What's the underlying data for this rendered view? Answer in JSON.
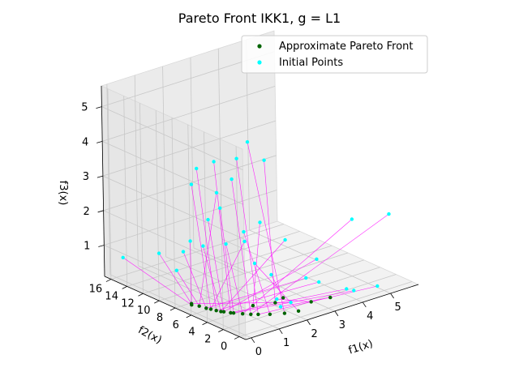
{
  "chart_data": {
    "type": "scatter3d",
    "title": "Pareto Front IKK1, g = L1",
    "xlabel": "f1(x)",
    "ylabel": "f2(x)",
    "zlabel": "f3(x)",
    "xlim": [
      -0.2,
      6.0
    ],
    "ylim": [
      -0.8,
      16.8
    ],
    "zlim": [
      0.1,
      5.6
    ],
    "xticks": [
      "0",
      "1",
      "2",
      "3",
      "4",
      "5"
    ],
    "yticks": [
      "0",
      "2",
      "4",
      "6",
      "8",
      "10",
      "12",
      "14",
      "16"
    ],
    "zticks": [
      "1",
      "2",
      "3",
      "4",
      "5"
    ],
    "grid": true,
    "legend_position": "upper-right",
    "series": [
      {
        "name": "Approximate Pareto Front",
        "color": "#006400",
        "points": [
          [
            0.05,
            6.8,
            0.25
          ],
          [
            0.1,
            7.0,
            0.25
          ],
          [
            0.15,
            6.2,
            0.25
          ],
          [
            0.2,
            5.5,
            0.25
          ],
          [
            0.25,
            5.1,
            0.25
          ],
          [
            0.3,
            4.6,
            0.25
          ],
          [
            0.35,
            4.2,
            0.25
          ],
          [
            0.4,
            4.0,
            0.25
          ],
          [
            0.5,
            3.5,
            0.25
          ],
          [
            0.55,
            3.3,
            0.25
          ],
          [
            0.7,
            2.7,
            0.25
          ],
          [
            0.85,
            2.2,
            0.25
          ],
          [
            1.0,
            1.8,
            0.25
          ],
          [
            1.25,
            1.2,
            0.25
          ],
          [
            1.6,
            0.6,
            0.25
          ],
          [
            2.0,
            0.25,
            0.25
          ],
          [
            1.3,
            3.5,
            0.25
          ],
          [
            1.9,
            2.8,
            0.25
          ],
          [
            2.3,
            3.2,
            0.25
          ],
          [
            2.7,
            1.1,
            0.25
          ],
          [
            3.3,
            0.8,
            0.25
          ]
        ]
      },
      {
        "name": "Initial Points",
        "color": "#00ffff",
        "points": [
          [
            0.1,
            15.5,
            0.7
          ],
          [
            0.25,
            11.5,
            1.2
          ],
          [
            0.3,
            9.5,
            0.9
          ],
          [
            0.35,
            8.8,
            1.5
          ],
          [
            0.45,
            8.0,
            3.5
          ],
          [
            0.5,
            7.5,
            4.0
          ],
          [
            0.55,
            7.0,
            1.8
          ],
          [
            0.6,
            6.5,
            2.6
          ],
          [
            0.7,
            6.0,
            4.3
          ],
          [
            0.75,
            5.5,
            3.0
          ],
          [
            0.8,
            5.0,
            2.0
          ],
          [
            0.9,
            4.5,
            3.9
          ],
          [
            1.0,
            4.2,
            4.5
          ],
          [
            1.1,
            3.8,
            2.4
          ],
          [
            1.2,
            3.5,
            5.0
          ],
          [
            1.3,
            3.2,
            1.5
          ],
          [
            1.4,
            2.8,
            2.7
          ],
          [
            1.5,
            2.5,
            4.5
          ],
          [
            1.6,
            2.2,
            1.2
          ],
          [
            1.7,
            1.9,
            0.5
          ],
          [
            1.75,
            1.6,
            0.3
          ],
          [
            1.8,
            13.0,
            1.0
          ],
          [
            2.0,
            1.2,
            0.4
          ],
          [
            2.2,
            11.0,
            2.5
          ],
          [
            2.5,
            1.0,
            1.0
          ],
          [
            2.6,
            9.0,
            1.2
          ],
          [
            2.9,
            0.8,
            0.8
          ],
          [
            3.2,
            6.0,
            1.4
          ],
          [
            3.6,
            3.5,
            1.0
          ],
          [
            3.8,
            0.5,
            0.4
          ],
          [
            4.2,
            1.0,
            0.2
          ],
          [
            4.6,
            2.5,
            2.0
          ],
          [
            5.3,
            0.3,
            2.2
          ],
          [
            4.9,
            0.5,
            0.2
          ]
        ]
      }
    ],
    "connections": {
      "color": "#ff00ff",
      "description_pairs": [
        [
          0,
          0
        ],
        [
          1,
          1
        ],
        [
          2,
          2
        ],
        [
          3,
          3
        ],
        [
          4,
          4
        ],
        [
          5,
          5
        ],
        [
          6,
          6
        ],
        [
          7,
          7
        ],
        [
          8,
          8
        ],
        [
          9,
          9
        ],
        [
          10,
          10
        ],
        [
          11,
          11
        ],
        [
          12,
          12
        ],
        [
          13,
          13
        ],
        [
          14,
          14
        ],
        [
          15,
          15
        ],
        [
          16,
          16
        ],
        [
          17,
          17
        ],
        [
          18,
          18
        ],
        [
          19,
          19
        ],
        [
          20,
          20
        ],
        [
          21,
          0
        ],
        [
          22,
          1
        ],
        [
          23,
          2
        ],
        [
          24,
          3
        ],
        [
          25,
          4
        ],
        [
          26,
          5
        ],
        [
          27,
          6
        ],
        [
          28,
          7
        ],
        [
          29,
          8
        ],
        [
          30,
          9
        ],
        [
          31,
          10
        ],
        [
          32,
          11
        ],
        [
          33,
          12
        ]
      ]
    }
  }
}
